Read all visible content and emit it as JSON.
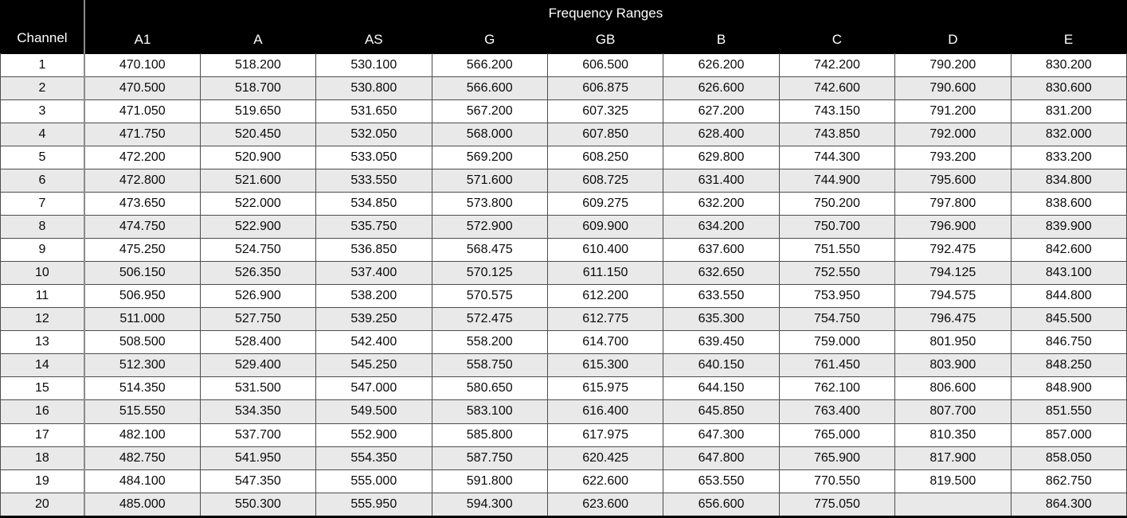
{
  "table": {
    "group_header": "Frequency Ranges",
    "channel_header": "Channel",
    "columns": [
      "A1",
      "A",
      "AS",
      "G",
      "GB",
      "B",
      "C",
      "D",
      "E"
    ],
    "rows": [
      {
        "channel": "1",
        "values": [
          "470.100",
          "518.200",
          "530.100",
          "566.200",
          "606.500",
          "626.200",
          "742.200",
          "790.200",
          "830.200"
        ]
      },
      {
        "channel": "2",
        "values": [
          "470.500",
          "518.700",
          "530.800",
          "566.600",
          "606.875",
          "626.600",
          "742.600",
          "790.600",
          "830.600"
        ]
      },
      {
        "channel": "3",
        "values": [
          "471.050",
          "519.650",
          "531.650",
          "567.200",
          "607.325",
          "627.200",
          "743.150",
          "791.200",
          "831.200"
        ]
      },
      {
        "channel": "4",
        "values": [
          "471.750",
          "520.450",
          "532.050",
          "568.000",
          "607.850",
          "628.400",
          "743.850",
          "792.000",
          "832.000"
        ]
      },
      {
        "channel": "5",
        "values": [
          "472.200",
          "520.900",
          "533.050",
          "569.200",
          "608.250",
          "629.800",
          "744.300",
          "793.200",
          "833.200"
        ]
      },
      {
        "channel": "6",
        "values": [
          "472.800",
          "521.600",
          "533.550",
          "571.600",
          "608.725",
          "631.400",
          "744.900",
          "795.600",
          "834.800"
        ]
      },
      {
        "channel": "7",
        "values": [
          "473.650",
          "522.000",
          "534.850",
          "573.800",
          "609.275",
          "632.200",
          "750.200",
          "797.800",
          "838.600"
        ]
      },
      {
        "channel": "8",
        "values": [
          "474.750",
          "522.900",
          "535.750",
          "572.900",
          "609.900",
          "634.200",
          "750.700",
          "796.900",
          "839.900"
        ]
      },
      {
        "channel": "9",
        "values": [
          "475.250",
          "524.750",
          "536.850",
          "568.475",
          "610.400",
          "637.600",
          "751.550",
          "792.475",
          "842.600"
        ]
      },
      {
        "channel": "10",
        "values": [
          "506.150",
          "526.350",
          "537.400",
          "570.125",
          "611.150",
          "632.650",
          "752.550",
          "794.125",
          "843.100"
        ]
      },
      {
        "channel": "11",
        "values": [
          "506.950",
          "526.900",
          "538.200",
          "570.575",
          "612.200",
          "633.550",
          "753.950",
          "794.575",
          "844.800"
        ]
      },
      {
        "channel": "12",
        "values": [
          "511.000",
          "527.750",
          "539.250",
          "572.475",
          "612.775",
          "635.300",
          "754.750",
          "796.475",
          "845.500"
        ]
      },
      {
        "channel": "13",
        "values": [
          "508.500",
          "528.400",
          "542.400",
          "558.200",
          "614.700",
          "639.450",
          "759.000",
          "801.950",
          "846.750"
        ]
      },
      {
        "channel": "14",
        "values": [
          "512.300",
          "529.400",
          "545.250",
          "558.750",
          "615.300",
          "640.150",
          "761.450",
          "803.900",
          "848.250"
        ]
      },
      {
        "channel": "15",
        "values": [
          "514.350",
          "531.500",
          "547.000",
          "580.650",
          "615.975",
          "644.150",
          "762.100",
          "806.600",
          "848.900"
        ]
      },
      {
        "channel": "16",
        "values": [
          "515.550",
          "534.350",
          "549.500",
          "583.100",
          "616.400",
          "645.850",
          "763.400",
          "807.700",
          "851.550"
        ]
      },
      {
        "channel": "17",
        "values": [
          "482.100",
          "537.700",
          "552.900",
          "585.800",
          "617.975",
          "647.300",
          "765.000",
          "810.350",
          "857.000"
        ]
      },
      {
        "channel": "18",
        "values": [
          "482.750",
          "541.950",
          "554.350",
          "587.750",
          "620.425",
          "647.800",
          "765.900",
          "817.900",
          "858.050"
        ]
      },
      {
        "channel": "19",
        "values": [
          "484.100",
          "547.350",
          "555.000",
          "591.800",
          "622.600",
          "653.550",
          "770.550",
          "819.500",
          "862.750"
        ]
      },
      {
        "channel": "20",
        "values": [
          "485.000",
          "550.300",
          "555.950",
          "594.300",
          "623.600",
          "656.600",
          "775.050",
          "",
          "864.300"
        ]
      }
    ]
  },
  "colors": {
    "header_background": "#000000",
    "header_text": "#ffffff",
    "row_alternate": "#e9e9e9",
    "cell_border": "#4d4d4d",
    "channel_divider": "#8a8a8a"
  }
}
